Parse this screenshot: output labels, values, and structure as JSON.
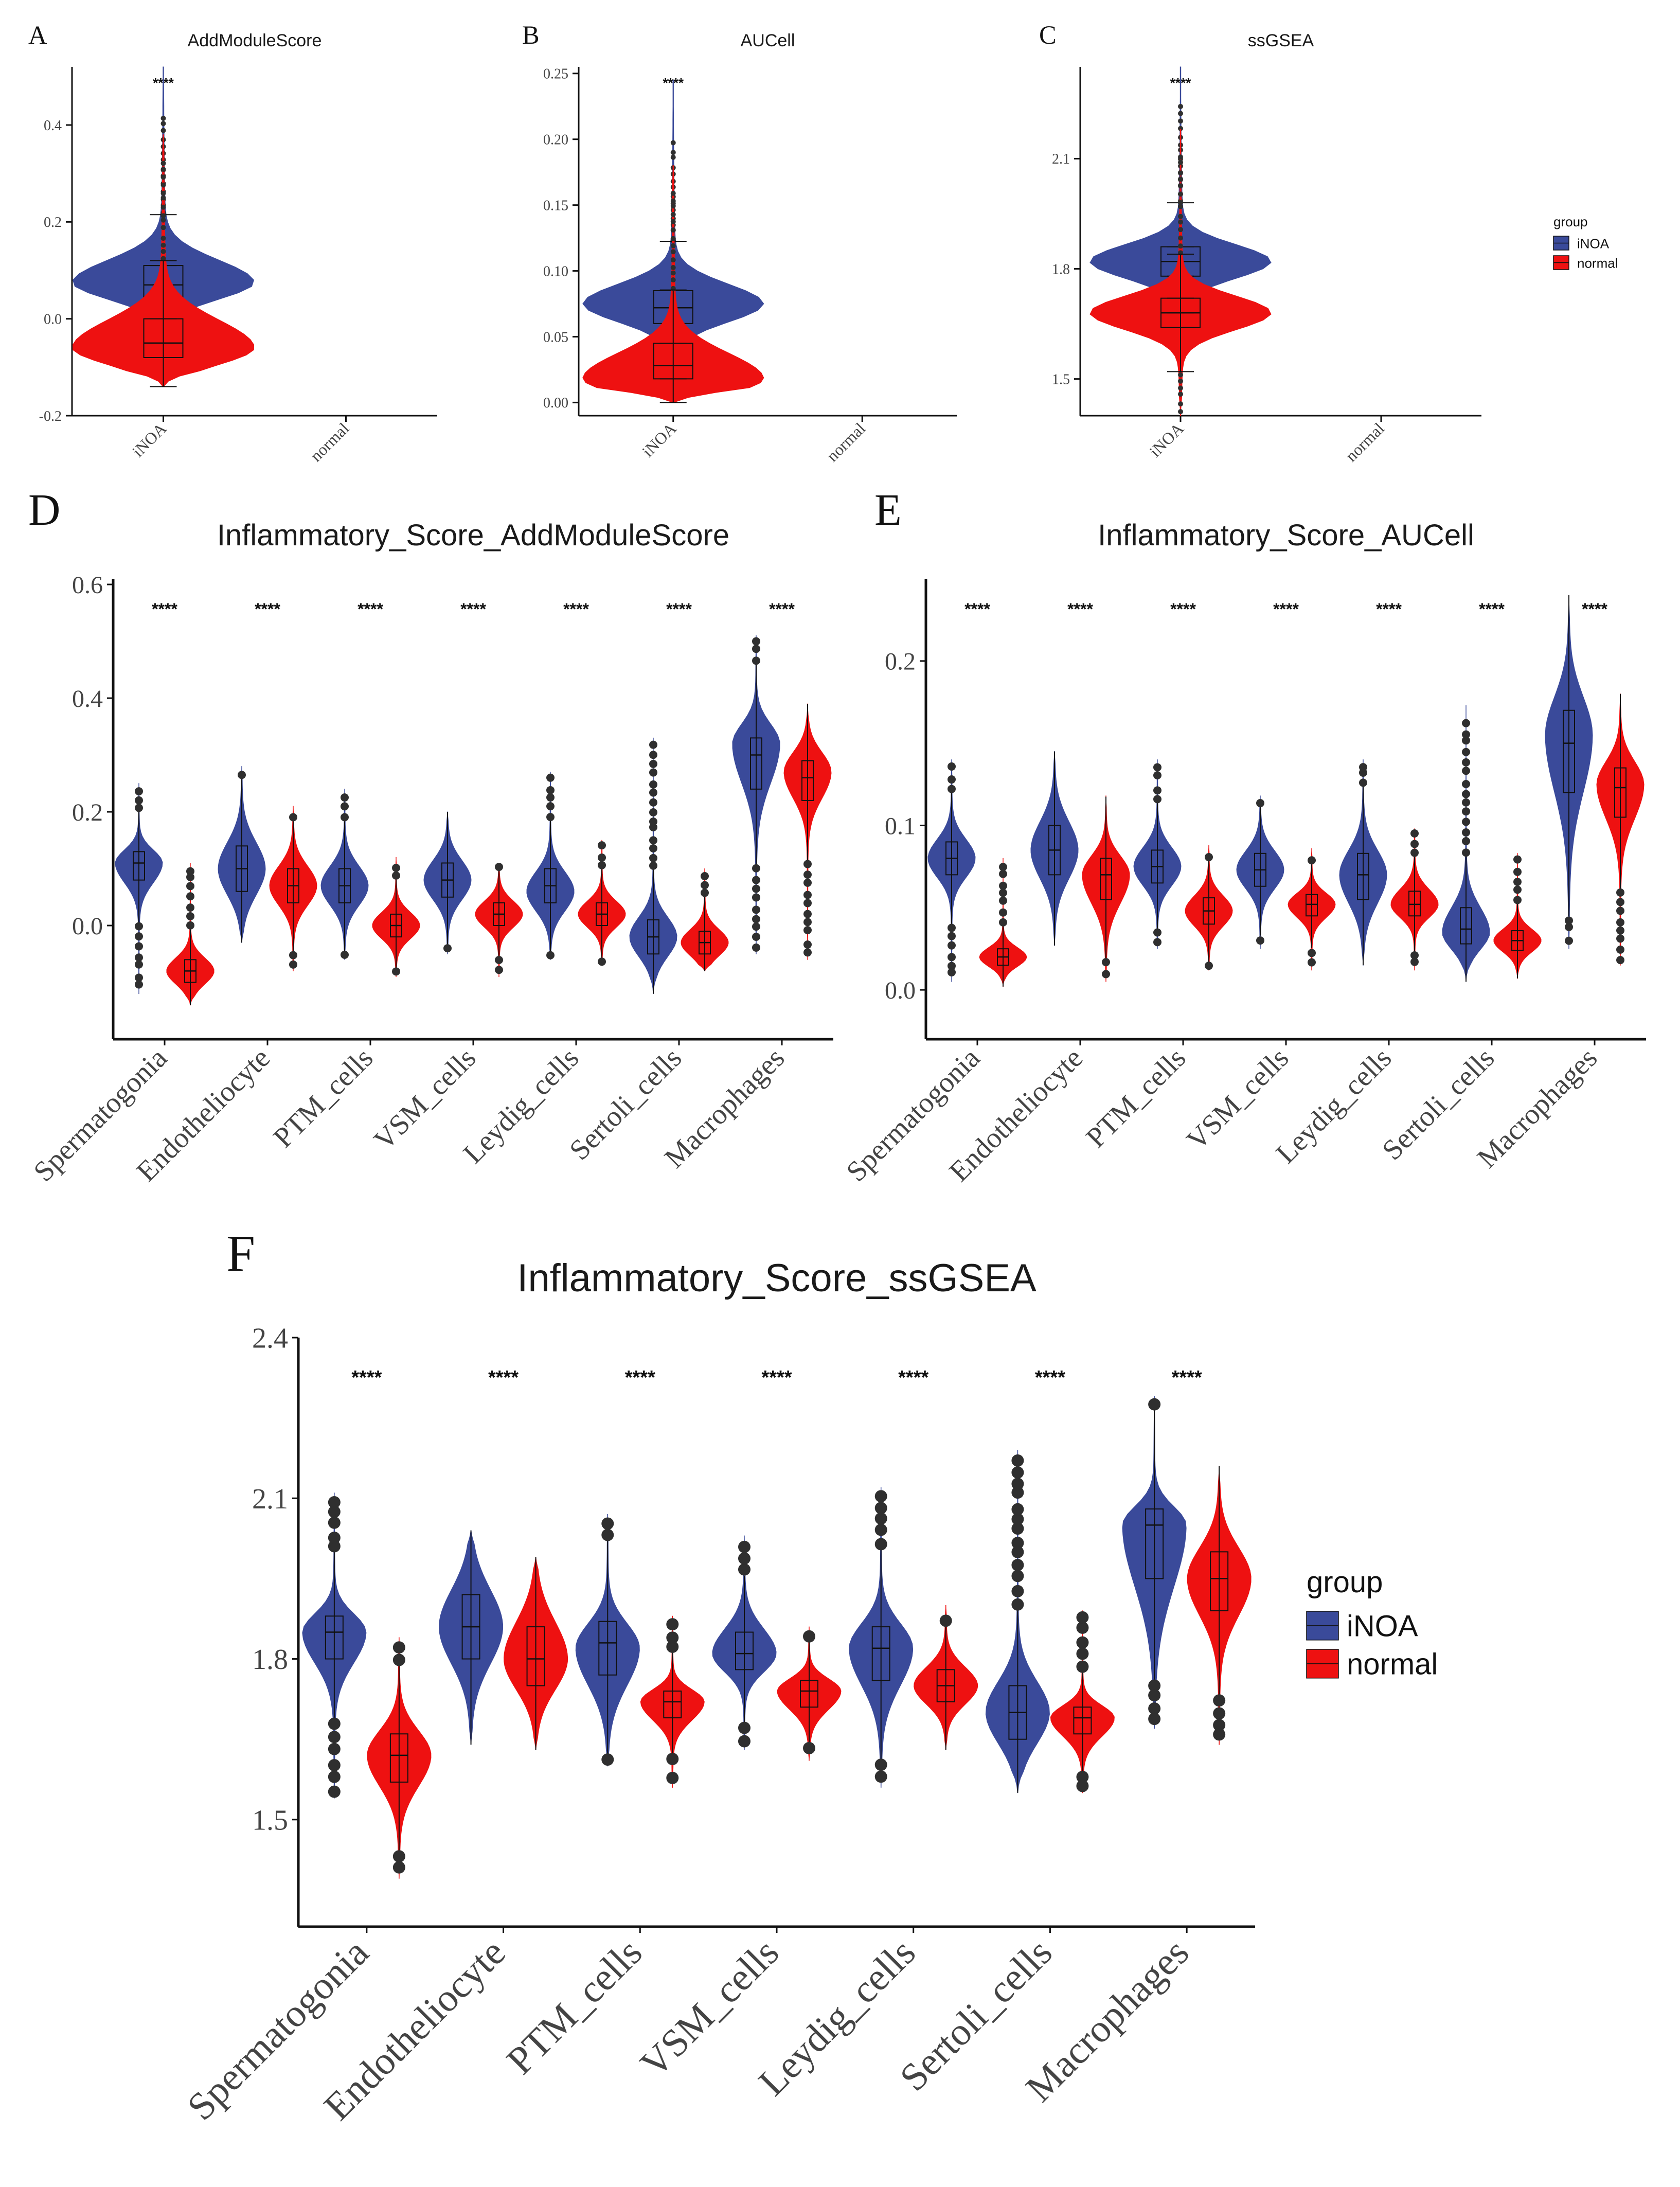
{
  "colors": {
    "iNOA": "#3a4a9a",
    "normal": "#ee1111",
    "axis": "#111111",
    "outlier": "#2f2f2f"
  },
  "legend": {
    "title": "group",
    "items": [
      "iNOA",
      "normal"
    ]
  },
  "chart_data": [
    {
      "id": "A",
      "panel_letter": "A",
      "type": "violin",
      "title": "AddModuleScore",
      "xlabel": "",
      "ylabel": "",
      "categories": [
        "iNOA",
        "normal"
      ],
      "ylim": [
        -0.2,
        0.52
      ],
      "yticks": [
        -0.2,
        0.0,
        0.2,
        0.4
      ],
      "ytick_labels": [
        "-0.2",
        "0.0",
        "0.2",
        "0.4"
      ],
      "significance": [
        "****",
        ""
      ],
      "series": [
        {
          "name": "iNOA",
          "stats": [
            {
              "min": -0.12,
              "q1": 0.04,
              "median": 0.07,
              "q3": 0.11,
              "max": 0.52,
              "mode": 0.075
            }
          ]
        },
        {
          "name": "normal",
          "stats": [
            {
              "min": -0.14,
              "q1": -0.08,
              "median": -0.05,
              "q3": 0.0,
              "max": 0.38,
              "mode": -0.06
            }
          ]
        }
      ]
    },
    {
      "id": "B",
      "panel_letter": "B",
      "type": "violin",
      "title": "AUCell",
      "xlabel": "",
      "ylabel": "",
      "categories": [
        "iNOA",
        "normal"
      ],
      "ylim": [
        -0.01,
        0.255
      ],
      "yticks": [
        0.0,
        0.05,
        0.1,
        0.15,
        0.2,
        0.25
      ],
      "ytick_labels": [
        "0.00",
        "0.05",
        "0.10",
        "0.15",
        "0.20",
        "0.25"
      ],
      "significance": [
        "****",
        ""
      ],
      "series": [
        {
          "name": "iNOA",
          "stats": [
            {
              "min": 0.005,
              "q1": 0.06,
              "median": 0.072,
              "q3": 0.085,
              "max": 0.245,
              "mode": 0.075
            }
          ]
        },
        {
          "name": "normal",
          "stats": [
            {
              "min": 0.0,
              "q1": 0.018,
              "median": 0.028,
              "q3": 0.045,
              "max": 0.18,
              "mode": 0.018
            }
          ]
        }
      ]
    },
    {
      "id": "C",
      "panel_letter": "C",
      "type": "violin",
      "title": "ssGSEA",
      "xlabel": "",
      "ylabel": "",
      "categories": [
        "iNOA",
        "normal"
      ],
      "ylim": [
        1.4,
        2.35
      ],
      "yticks": [
        1.5,
        1.8,
        2.1
      ],
      "ytick_labels": [
        "1.5",
        "1.8",
        "2.1"
      ],
      "significance": [
        "****",
        ""
      ],
      "series": [
        {
          "name": "iNOA",
          "stats": [
            {
              "min": 1.55,
              "q1": 1.78,
              "median": 1.82,
              "q3": 1.86,
              "max": 2.35,
              "mode": 1.82
            }
          ]
        },
        {
          "name": "normal",
          "stats": [
            {
              "min": 1.4,
              "q1": 1.64,
              "median": 1.68,
              "q3": 1.72,
              "max": 2.18,
              "mode": 1.68
            }
          ]
        }
      ]
    },
    {
      "id": "D",
      "panel_letter": "D",
      "type": "violin",
      "title": "Inflammatory_Score_AddModuleScore",
      "xlabel": "",
      "ylabel": "",
      "categories": [
        "Spermatogonia",
        "Endotheliocyte",
        "PTM_cells",
        "VSM_cells",
        "Leydig_cells",
        "Sertoli_cells",
        "Macrophages"
      ],
      "ylim": [
        -0.2,
        0.61
      ],
      "yticks": [
        0.0,
        0.2,
        0.4,
        0.6
      ],
      "ytick_labels": [
        "0.0",
        "0.2",
        "0.4",
        "0.6"
      ],
      "significance": [
        "****",
        "****",
        "****",
        "****",
        "****",
        "****",
        "****"
      ],
      "series": [
        {
          "name": "iNOA",
          "stats": [
            {
              "min": -0.12,
              "q1": 0.08,
              "median": 0.11,
              "q3": 0.13,
              "max": 0.25,
              "mode": 0.11
            },
            {
              "min": -0.03,
              "q1": 0.06,
              "median": 0.1,
              "q3": 0.14,
              "max": 0.28,
              "mode": 0.1
            },
            {
              "min": -0.06,
              "q1": 0.04,
              "median": 0.07,
              "q3": 0.1,
              "max": 0.24,
              "mode": 0.07
            },
            {
              "min": -0.05,
              "q1": 0.05,
              "median": 0.08,
              "q3": 0.11,
              "max": 0.2,
              "mode": 0.08
            },
            {
              "min": -0.06,
              "q1": 0.04,
              "median": 0.07,
              "q3": 0.1,
              "max": 0.27,
              "mode": 0.06
            },
            {
              "min": -0.12,
              "q1": -0.05,
              "median": -0.02,
              "q3": 0.01,
              "max": 0.33,
              "mode": -0.02
            },
            {
              "min": -0.05,
              "q1": 0.24,
              "median": 0.3,
              "q3": 0.33,
              "max": 0.51,
              "mode": 0.32
            }
          ]
        },
        {
          "name": "normal",
          "stats": [
            {
              "min": -0.14,
              "q1": -0.1,
              "median": -0.08,
              "q3": -0.06,
              "max": 0.11,
              "mode": -0.08
            },
            {
              "min": -0.08,
              "q1": 0.04,
              "median": 0.07,
              "q3": 0.1,
              "max": 0.21,
              "mode": 0.07
            },
            {
              "min": -0.09,
              "q1": -0.02,
              "median": 0.0,
              "q3": 0.02,
              "max": 0.12,
              "mode": 0.0
            },
            {
              "min": -0.09,
              "q1": 0.0,
              "median": 0.02,
              "q3": 0.04,
              "max": 0.11,
              "mode": 0.02
            },
            {
              "min": -0.07,
              "q1": 0.0,
              "median": 0.02,
              "q3": 0.04,
              "max": 0.15,
              "mode": 0.02
            },
            {
              "min": -0.08,
              "q1": -0.05,
              "median": -0.03,
              "q3": -0.01,
              "max": 0.1,
              "mode": -0.03
            },
            {
              "min": -0.06,
              "q1": 0.22,
              "median": 0.26,
              "q3": 0.29,
              "max": 0.39,
              "mode": 0.27
            }
          ]
        }
      ]
    },
    {
      "id": "E",
      "panel_letter": "E",
      "type": "violin",
      "title": "Inflammatory_Score_AUCell",
      "xlabel": "",
      "ylabel": "",
      "categories": [
        "Spermatogonia",
        "Endotheliocyte",
        "PTM_cells",
        "VSM_cells",
        "Leydig_cells",
        "Sertoli_cells",
        "Macrophages"
      ],
      "ylim": [
        -0.03,
        0.25
      ],
      "yticks": [
        0.0,
        0.1,
        0.2
      ],
      "ytick_labels": [
        "0.0",
        "0.1",
        "0.2"
      ],
      "significance": [
        "****",
        "****",
        "****",
        "****",
        "****",
        "****",
        "****"
      ],
      "series": [
        {
          "name": "iNOA",
          "stats": [
            {
              "min": 0.005,
              "q1": 0.07,
              "median": 0.08,
              "q3": 0.09,
              "max": 0.14,
              "mode": 0.08
            },
            {
              "min": 0.027,
              "q1": 0.07,
              "median": 0.085,
              "q3": 0.1,
              "max": 0.145,
              "mode": 0.085
            },
            {
              "min": 0.025,
              "q1": 0.065,
              "median": 0.075,
              "q3": 0.085,
              "max": 0.14,
              "mode": 0.075
            },
            {
              "min": 0.025,
              "q1": 0.063,
              "median": 0.073,
              "q3": 0.083,
              "max": 0.118,
              "mode": 0.073
            },
            {
              "min": 0.015,
              "q1": 0.055,
              "median": 0.07,
              "q3": 0.083,
              "max": 0.14,
              "mode": 0.07
            },
            {
              "min": 0.005,
              "q1": 0.028,
              "median": 0.037,
              "q3": 0.05,
              "max": 0.173,
              "mode": 0.035
            },
            {
              "min": 0.025,
              "q1": 0.12,
              "median": 0.15,
              "q3": 0.17,
              "max": 0.24,
              "mode": 0.155
            }
          ]
        },
        {
          "name": "normal",
          "stats": [
            {
              "min": 0.002,
              "q1": 0.015,
              "median": 0.02,
              "q3": 0.025,
              "max": 0.08,
              "mode": 0.02
            },
            {
              "min": 0.005,
              "q1": 0.055,
              "median": 0.07,
              "q3": 0.08,
              "max": 0.118,
              "mode": 0.07
            },
            {
              "min": 0.012,
              "q1": 0.04,
              "median": 0.048,
              "q3": 0.056,
              "max": 0.088,
              "mode": 0.048
            },
            {
              "min": 0.012,
              "q1": 0.045,
              "median": 0.052,
              "q3": 0.058,
              "max": 0.086,
              "mode": 0.052
            },
            {
              "min": 0.012,
              "q1": 0.045,
              "median": 0.052,
              "q3": 0.06,
              "max": 0.098,
              "mode": 0.052
            },
            {
              "min": 0.007,
              "q1": 0.024,
              "median": 0.03,
              "q3": 0.036,
              "max": 0.083,
              "mode": 0.03
            },
            {
              "min": 0.015,
              "q1": 0.105,
              "median": 0.123,
              "q3": 0.135,
              "max": 0.18,
              "mode": 0.125
            }
          ]
        }
      ]
    },
    {
      "id": "F",
      "panel_letter": "F",
      "type": "violin",
      "title": "Inflammatory_Score_ssGSEA",
      "xlabel": "",
      "ylabel": "",
      "categories": [
        "Spermatogonia",
        "Endotheliocyte",
        "PTM_cells",
        "VSM_cells",
        "Leydig_cells",
        "Sertoli_cells",
        "Macrophages"
      ],
      "ylim": [
        1.3,
        2.4
      ],
      "yticks": [
        1.5,
        1.8,
        2.1,
        2.4
      ],
      "ytick_labels": [
        "1.5",
        "1.8",
        "2.1",
        "2.4"
      ],
      "significance": [
        "****",
        "****",
        "****",
        "****",
        "****",
        "****",
        "****"
      ],
      "series": [
        {
          "name": "iNOA",
          "stats": [
            {
              "min": 1.54,
              "q1": 1.8,
              "median": 1.85,
              "q3": 1.88,
              "max": 2.11,
              "mode": 1.85
            },
            {
              "min": 1.64,
              "q1": 1.8,
              "median": 1.86,
              "q3": 1.92,
              "max": 2.04,
              "mode": 1.86
            },
            {
              "min": 1.6,
              "q1": 1.77,
              "median": 1.83,
              "q3": 1.87,
              "max": 2.07,
              "mode": 1.82
            },
            {
              "min": 1.63,
              "q1": 1.78,
              "median": 1.81,
              "q3": 1.85,
              "max": 2.03,
              "mode": 1.81
            },
            {
              "min": 1.56,
              "q1": 1.76,
              "median": 1.82,
              "q3": 1.86,
              "max": 2.12,
              "mode": 1.82
            },
            {
              "min": 1.55,
              "q1": 1.65,
              "median": 1.7,
              "q3": 1.75,
              "max": 2.19,
              "mode": 1.7
            },
            {
              "min": 1.67,
              "q1": 1.95,
              "median": 2.05,
              "q3": 2.08,
              "max": 2.29,
              "mode": 2.05
            }
          ]
        },
        {
          "name": "normal",
          "stats": [
            {
              "min": 1.39,
              "q1": 1.57,
              "median": 1.62,
              "q3": 1.66,
              "max": 1.84,
              "mode": 1.62
            },
            {
              "min": 1.63,
              "q1": 1.75,
              "median": 1.8,
              "q3": 1.86,
              "max": 1.99,
              "mode": 1.8
            },
            {
              "min": 1.56,
              "q1": 1.69,
              "median": 1.72,
              "q3": 1.74,
              "max": 1.88,
              "mode": 1.72
            },
            {
              "min": 1.61,
              "q1": 1.71,
              "median": 1.74,
              "q3": 1.76,
              "max": 1.86,
              "mode": 1.74
            },
            {
              "min": 1.63,
              "q1": 1.72,
              "median": 1.75,
              "q3": 1.78,
              "max": 1.9,
              "mode": 1.75
            },
            {
              "min": 1.55,
              "q1": 1.66,
              "median": 1.69,
              "q3": 1.71,
              "max": 1.89,
              "mode": 1.69
            },
            {
              "min": 1.64,
              "q1": 1.89,
              "median": 1.95,
              "q3": 2.0,
              "max": 2.16,
              "mode": 1.95
            }
          ]
        }
      ]
    }
  ]
}
